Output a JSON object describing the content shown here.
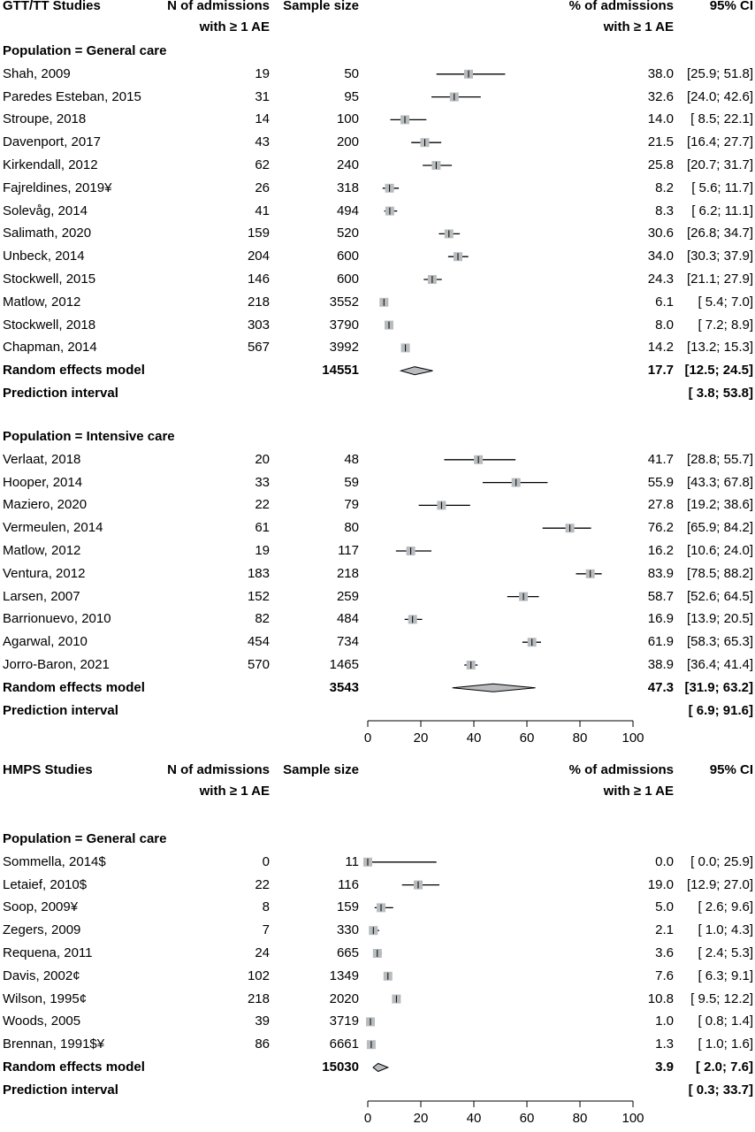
{
  "chart_data": [
    {
      "type": "forest",
      "panel": "GTT/TT Studies",
      "headers": {
        "study": "GTT/TT Studies",
        "n_line1": "N of admissions",
        "n_line2": "with ≥ 1 AE",
        "sample": "Sample size",
        "pct_line1": "% of admissions",
        "pct_line2": "with ≥ 1 AE",
        "ci": "95% CI"
      },
      "subgroups": [
        {
          "title": "Population = General care",
          "studies": [
            {
              "study": "Shah, 2009",
              "events": "19",
              "total": "50",
              "est": "38.0",
              "ci": "[25.9; 51.8]",
              "est_v": 38.0,
              "lo": 25.9,
              "hi": 51.8
            },
            {
              "study": "Paredes Esteban, 2015",
              "events": "31",
              "total": "95",
              "est": "32.6",
              "ci": "[24.0; 42.6]",
              "est_v": 32.6,
              "lo": 24.0,
              "hi": 42.6
            },
            {
              "study": "Stroupe, 2018",
              "events": "14",
              "total": "100",
              "est": "14.0",
              "ci": "[ 8.5; 22.1]",
              "est_v": 14.0,
              "lo": 8.5,
              "hi": 22.1
            },
            {
              "study": "Davenport, 2017",
              "events": "43",
              "total": "200",
              "est": "21.5",
              "ci": "[16.4; 27.7]",
              "est_v": 21.5,
              "lo": 16.4,
              "hi": 27.7
            },
            {
              "study": "Kirkendall, 2012",
              "events": "62",
              "total": "240",
              "est": "25.8",
              "ci": "[20.7; 31.7]",
              "est_v": 25.8,
              "lo": 20.7,
              "hi": 31.7
            },
            {
              "study": "Fajreldines, 2019¥",
              "events": "26",
              "total": "318",
              "est": "8.2",
              "ci": "[ 5.6; 11.7]",
              "est_v": 8.2,
              "lo": 5.6,
              "hi": 11.7
            },
            {
              "study": "Solevåg, 2014",
              "events": "41",
              "total": "494",
              "est": "8.3",
              "ci": "[ 6.2; 11.1]",
              "est_v": 8.3,
              "lo": 6.2,
              "hi": 11.1
            },
            {
              "study": "Salimath, 2020",
              "events": "159",
              "total": "520",
              "est": "30.6",
              "ci": "[26.8; 34.7]",
              "est_v": 30.6,
              "lo": 26.8,
              "hi": 34.7
            },
            {
              "study": "Unbeck, 2014",
              "events": "204",
              "total": "600",
              "est": "34.0",
              "ci": "[30.3; 37.9]",
              "est_v": 34.0,
              "lo": 30.3,
              "hi": 37.9
            },
            {
              "study": "Stockwell, 2015",
              "events": "146",
              "total": "600",
              "est": "24.3",
              "ci": "[21.1; 27.9]",
              "est_v": 24.3,
              "lo": 21.1,
              "hi": 27.9
            },
            {
              "study": "Matlow, 2012",
              "events": "218",
              "total": "3552",
              "est": "6.1",
              "ci": "[ 5.4; 7.0]",
              "est_v": 6.1,
              "lo": 5.4,
              "hi": 7.0
            },
            {
              "study": "Stockwell, 2018",
              "events": "303",
              "total": "3790",
              "est": "8.0",
              "ci": "[ 7.2; 8.9]",
              "est_v": 8.0,
              "lo": 7.2,
              "hi": 8.9
            },
            {
              "study": "Chapman, 2014",
              "events": "567",
              "total": "3992",
              "est": "14.2",
              "ci": "[13.2; 15.3]",
              "est_v": 14.2,
              "lo": 13.2,
              "hi": 15.3
            }
          ],
          "model": {
            "label": "Random effects model",
            "total": "14551",
            "est": "17.7",
            "ci": "[12.5; 24.5]",
            "est_v": 17.7,
            "lo": 12.5,
            "hi": 24.5
          },
          "prediction": {
            "label": "Prediction interval",
            "ci": "[ 3.8; 53.8]"
          }
        },
        {
          "title": "Population = Intensive care",
          "studies": [
            {
              "study": "Verlaat, 2018",
              "events": "20",
              "total": "48",
              "est": "41.7",
              "ci": "[28.8; 55.7]",
              "est_v": 41.7,
              "lo": 28.8,
              "hi": 55.7
            },
            {
              "study": "Hooper, 2014",
              "events": "33",
              "total": "59",
              "est": "55.9",
              "ci": "[43.3; 67.8]",
              "est_v": 55.9,
              "lo": 43.3,
              "hi": 67.8
            },
            {
              "study": "Maziero, 2020",
              "events": "22",
              "total": "79",
              "est": "27.8",
              "ci": "[19.2; 38.6]",
              "est_v": 27.8,
              "lo": 19.2,
              "hi": 38.6
            },
            {
              "study": "Vermeulen, 2014",
              "events": "61",
              "total": "80",
              "est": "76.2",
              "ci": "[65.9; 84.2]",
              "est_v": 76.2,
              "lo": 65.9,
              "hi": 84.2
            },
            {
              "study": "Matlow, 2012",
              "events": "19",
              "total": "117",
              "est": "16.2",
              "ci": "[10.6; 24.0]",
              "est_v": 16.2,
              "lo": 10.6,
              "hi": 24.0
            },
            {
              "study": "Ventura, 2012",
              "events": "183",
              "total": "218",
              "est": "83.9",
              "ci": "[78.5; 88.2]",
              "est_v": 83.9,
              "lo": 78.5,
              "hi": 88.2
            },
            {
              "study": "Larsen, 2007",
              "events": "152",
              "total": "259",
              "est": "58.7",
              "ci": "[52.6; 64.5]",
              "est_v": 58.7,
              "lo": 52.6,
              "hi": 64.5
            },
            {
              "study": "Barrionuevo, 2010",
              "events": "82",
              "total": "484",
              "est": "16.9",
              "ci": "[13.9; 20.5]",
              "est_v": 16.9,
              "lo": 13.9,
              "hi": 20.5
            },
            {
              "study": "Agarwal, 2010",
              "events": "454",
              "total": "734",
              "est": "61.9",
              "ci": "[58.3; 65.3]",
              "est_v": 61.9,
              "lo": 58.3,
              "hi": 65.3
            },
            {
              "study": "Jorro-Baron, 2021",
              "events": "570",
              "total": "1465",
              "est": "38.9",
              "ci": "[36.4; 41.4]",
              "est_v": 38.9,
              "lo": 36.4,
              "hi": 41.4
            }
          ],
          "model": {
            "label": "Random effects model",
            "total": "3543",
            "est": "47.3",
            "ci": "[31.9; 63.2]",
            "est_v": 47.3,
            "lo": 31.9,
            "hi": 63.2
          },
          "prediction": {
            "label": "Prediction interval",
            "ci": "[ 6.9; 91.6]"
          }
        }
      ],
      "xlim": [
        0,
        100
      ],
      "xticks": [
        "0",
        "20",
        "40",
        "60",
        "80",
        "100"
      ]
    },
    {
      "type": "forest",
      "panel": "HMPS Studies",
      "headers": {
        "study": "HMPS Studies",
        "n_line1": "N of admissions",
        "n_line2": "with ≥ 1 AE",
        "sample": "Sample size",
        "pct_line1": "% of admissions",
        "pct_line2": "with ≥ 1 AE",
        "ci": "95% CI"
      },
      "subgroups": [
        {
          "title": "Population = General care",
          "studies": [
            {
              "study": "Sommella, 2014$",
              "events": "0",
              "total": "11",
              "est": "0.0",
              "ci": "[ 0.0; 25.9]",
              "est_v": 0.0,
              "lo": 0.0,
              "hi": 25.9
            },
            {
              "study": "Letaief, 2010$",
              "events": "22",
              "total": "116",
              "est": "19.0",
              "ci": "[12.9; 27.0]",
              "est_v": 19.0,
              "lo": 12.9,
              "hi": 27.0
            },
            {
              "study": "Soop, 2009¥",
              "events": "8",
              "total": "159",
              "est": "5.0",
              "ci": "[ 2.6; 9.6]",
              "est_v": 5.0,
              "lo": 2.6,
              "hi": 9.6
            },
            {
              "study": "Zegers, 2009",
              "events": "7",
              "total": "330",
              "est": "2.1",
              "ci": "[ 1.0; 4.3]",
              "est_v": 2.1,
              "lo": 1.0,
              "hi": 4.3
            },
            {
              "study": "Requena, 2011",
              "events": "24",
              "total": "665",
              "est": "3.6",
              "ci": "[ 2.4; 5.3]",
              "est_v": 3.6,
              "lo": 2.4,
              "hi": 5.3
            },
            {
              "study": "Davis, 2002¢",
              "events": "102",
              "total": "1349",
              "est": "7.6",
              "ci": "[ 6.3; 9.1]",
              "est_v": 7.6,
              "lo": 6.3,
              "hi": 9.1
            },
            {
              "study": "Wilson, 1995¢",
              "events": "218",
              "total": "2020",
              "est": "10.8",
              "ci": "[ 9.5; 12.2]",
              "est_v": 10.8,
              "lo": 9.5,
              "hi": 12.2
            },
            {
              "study": "Woods, 2005",
              "events": "39",
              "total": "3719",
              "est": "1.0",
              "ci": "[ 0.8; 1.4]",
              "est_v": 1.0,
              "lo": 0.8,
              "hi": 1.4
            },
            {
              "study": "Brennan, 1991$¥",
              "events": "86",
              "total": "6661",
              "est": "1.3",
              "ci": "[ 1.0; 1.6]",
              "est_v": 1.3,
              "lo": 1.0,
              "hi": 1.6
            }
          ],
          "model": {
            "label": "Random effects model",
            "total": "15030",
            "est": "3.9",
            "ci": "[ 2.0; 7.6]",
            "est_v": 3.9,
            "lo": 2.0,
            "hi": 7.6
          },
          "prediction": {
            "label": "Prediction interval",
            "ci": "[ 0.3; 33.7]"
          }
        }
      ],
      "xlim": [
        0,
        100
      ],
      "xticks": [
        "0",
        "20",
        "40",
        "60",
        "80",
        "100"
      ]
    }
  ],
  "colors": {
    "square": "#b8bcbe",
    "diamond": "#b8bcbe",
    "line": "#000000",
    "text": "#000000"
  }
}
